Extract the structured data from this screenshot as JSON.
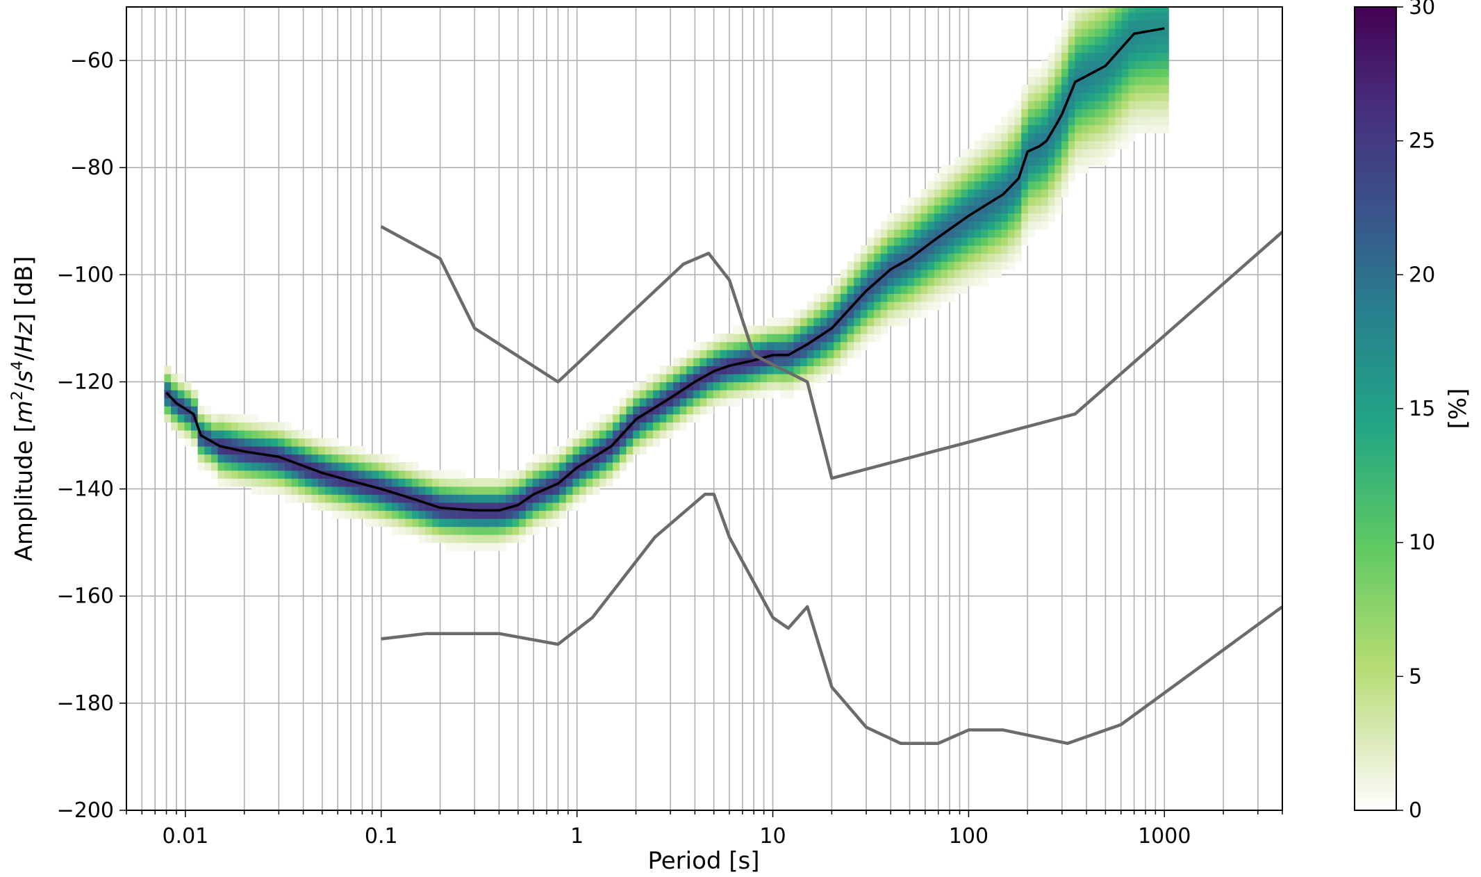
{
  "chart_data": {
    "type": "heatmap",
    "xlabel": "Period [s]",
    "ylabel_parts": [
      "Amplitude [",
      "m",
      "2",
      "/",
      "s",
      "4",
      "/",
      "Hz",
      "] [dB]"
    ],
    "colorbar_label": "[%]",
    "x_scale": "log",
    "xlim": [
      0.005,
      4000
    ],
    "ylim": [
      -200,
      -50
    ],
    "x_tick_labels": [
      "0.01",
      "0.1",
      "1",
      "10",
      "100",
      "1000"
    ],
    "x_tick_values": [
      0.01,
      0.1,
      1,
      10,
      100,
      1000
    ],
    "y_tick_labels": [
      "−200",
      "−180",
      "−160",
      "−140",
      "−120",
      "−100",
      "−80",
      "−60"
    ],
    "y_tick_values": [
      -200,
      -180,
      -160,
      -140,
      -120,
      -100,
      -80,
      -60
    ],
    "colorbar_range": [
      0,
      30
    ],
    "colorbar_tick_labels": [
      "0",
      "5",
      "10",
      "15",
      "20",
      "25",
      "30"
    ],
    "colorbar_tick_values": [
      0,
      5,
      10,
      15,
      20,
      25,
      30
    ],
    "colormap": "viridis_r",
    "grid": true,
    "series": [
      {
        "role": "mode",
        "color": "#000000",
        "x": [
          0.008,
          0.009,
          0.011,
          0.012,
          0.015,
          0.02,
          0.03,
          0.05,
          0.07,
          0.1,
          0.15,
          0.2,
          0.3,
          0.4,
          0.5,
          0.6,
          0.8,
          1,
          1.5,
          2,
          3,
          4,
          5,
          6,
          8,
          10,
          12,
          15,
          20,
          30,
          40,
          50,
          70,
          100,
          150,
          180,
          200,
          230,
          250,
          280,
          300,
          350,
          500,
          700,
          1000
        ],
        "y": [
          -122,
          -124,
          -126,
          -130,
          -132,
          -133,
          -134,
          -137,
          -138.5,
          -140,
          -142,
          -143.5,
          -144,
          -144,
          -143,
          -141,
          -139,
          -136,
          -132,
          -127,
          -123,
          -120,
          -118,
          -117,
          -116,
          -115,
          -115,
          -113,
          -110,
          -103,
          -99,
          -97,
          -93,
          -89,
          -85,
          -82,
          -77,
          -76,
          -75,
          -72,
          -70,
          -64,
          -61,
          -55,
          -54
        ]
      },
      {
        "role": "reference-curve",
        "color": "#6b6b6b",
        "x": [
          0.1,
          0.2,
          0.3,
          0.8,
          3.5,
          4.7,
          6,
          8,
          15,
          20,
          350,
          4000
        ],
        "y": [
          -91,
          -97,
          -110,
          -120,
          -98,
          -96,
          -101,
          -115,
          -120,
          -138,
          -126,
          -92
        ]
      },
      {
        "role": "reference-curve",
        "color": "#6b6b6b",
        "x": [
          0.1,
          0.17,
          0.4,
          0.8,
          1.2,
          2.5,
          4.5,
          5,
          6,
          10,
          12,
          15,
          20,
          30,
          45,
          70,
          100,
          150,
          320,
          600,
          4000
        ],
        "y": [
          -168,
          -167,
          -167,
          -169,
          -164,
          -149,
          -141,
          -141,
          -149,
          -164,
          -166,
          -162,
          -177,
          -184.5,
          -187.5,
          -187.5,
          -185,
          -185,
          -187.5,
          -184,
          -162
        ]
      }
    ],
    "density_notes": "Histogram of noise PSD values; density concentrated along the mode curve, widening at long periods."
  }
}
